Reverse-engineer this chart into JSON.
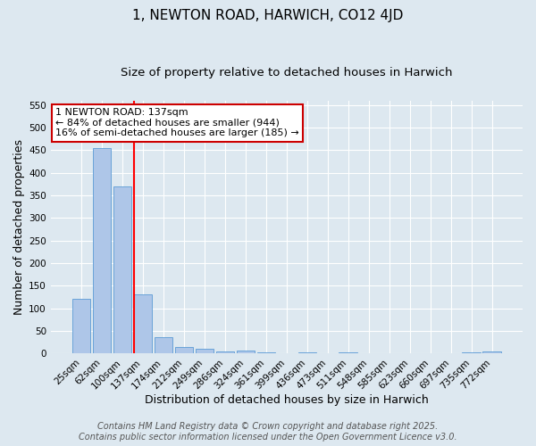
{
  "title": "1, NEWTON ROAD, HARWICH, CO12 4JD",
  "subtitle": "Size of property relative to detached houses in Harwich",
  "xlabel": "Distribution of detached houses by size in Harwich",
  "ylabel": "Number of detached properties",
  "categories": [
    "25sqm",
    "62sqm",
    "100sqm",
    "137sqm",
    "174sqm",
    "212sqm",
    "249sqm",
    "286sqm",
    "324sqm",
    "361sqm",
    "399sqm",
    "436sqm",
    "473sqm",
    "511sqm",
    "548sqm",
    "585sqm",
    "623sqm",
    "660sqm",
    "697sqm",
    "735sqm",
    "772sqm"
  ],
  "values": [
    120,
    455,
    370,
    130,
    35,
    15,
    10,
    5,
    6,
    3,
    0,
    3,
    0,
    3,
    0,
    0,
    0,
    0,
    0,
    3,
    5
  ],
  "bar_color": "#aec6e8",
  "bar_edge_color": "#5b9bd5",
  "red_line_index": 3,
  "ylim": [
    0,
    560
  ],
  "yticks": [
    0,
    50,
    100,
    150,
    200,
    250,
    300,
    350,
    400,
    450,
    500,
    550
  ],
  "annotation_text": "1 NEWTON ROAD: 137sqm\n← 84% of detached houses are smaller (944)\n16% of semi-detached houses are larger (185) →",
  "annotation_box_color": "#ffffff",
  "annotation_box_edge": "#cc0000",
  "footer_line1": "Contains HM Land Registry data © Crown copyright and database right 2025.",
  "footer_line2": "Contains public sector information licensed under the Open Government Licence v3.0.",
  "background_color": "#dde8f0",
  "grid_color": "#ffffff",
  "title_fontsize": 11,
  "subtitle_fontsize": 9.5,
  "axis_label_fontsize": 9,
  "tick_fontsize": 7.5,
  "footer_fontsize": 7,
  "annotation_fontsize": 8
}
